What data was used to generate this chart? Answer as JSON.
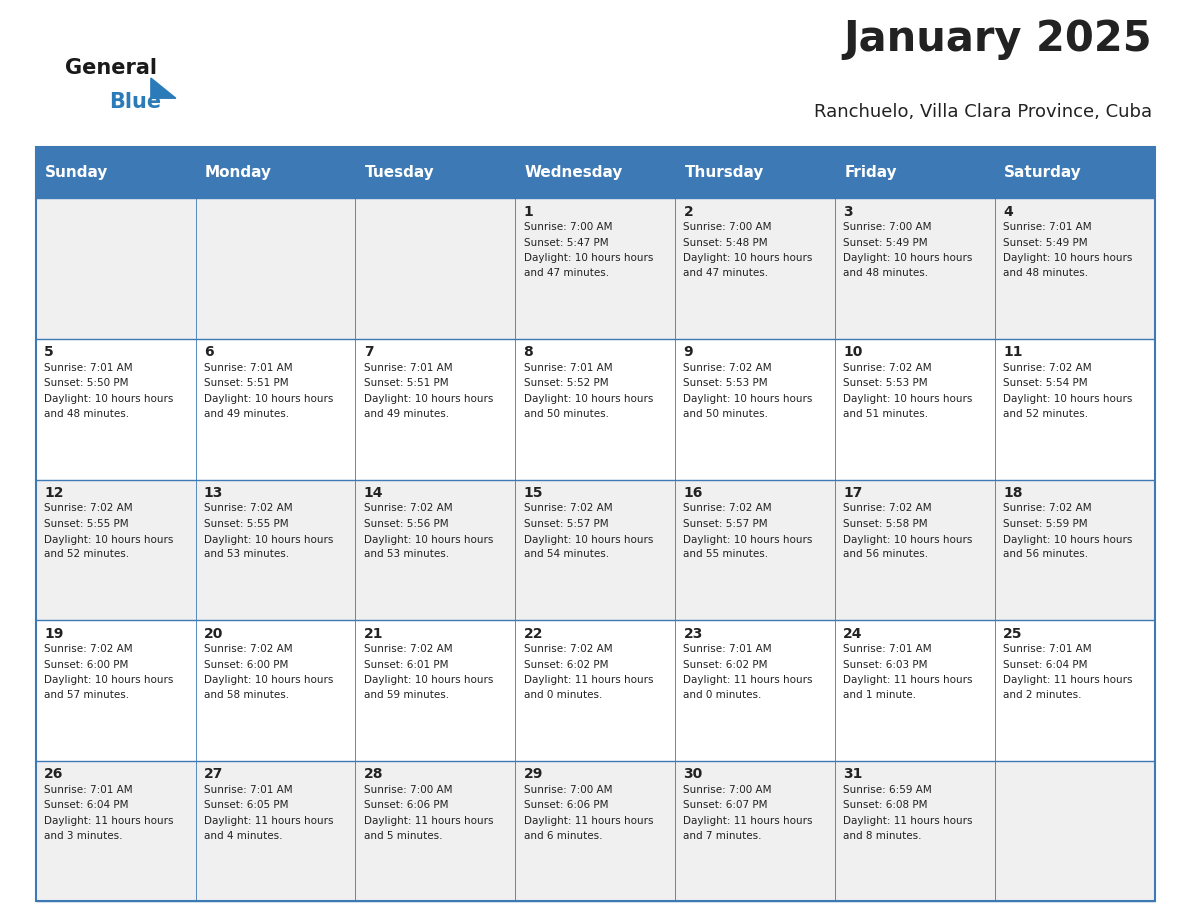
{
  "title": "January 2025",
  "subtitle": "Ranchuelo, Villa Clara Province, Cuba",
  "days_of_week": [
    "Sunday",
    "Monday",
    "Tuesday",
    "Wednesday",
    "Thursday",
    "Friday",
    "Saturday"
  ],
  "header_bg": "#3D7AB5",
  "header_text": "#FFFFFF",
  "cell_bg_light": "#F0F0F0",
  "cell_bg_white": "#FFFFFF",
  "border_color": "#3D7AB5",
  "text_color": "#222222",
  "logo_general_color": "#1A1A1A",
  "logo_blue_color": "#2B7BB9",
  "calendar_data": [
    [
      {
        "day": null,
        "sunrise": null,
        "sunset": null,
        "daylight": null
      },
      {
        "day": null,
        "sunrise": null,
        "sunset": null,
        "daylight": null
      },
      {
        "day": null,
        "sunrise": null,
        "sunset": null,
        "daylight": null
      },
      {
        "day": 1,
        "sunrise": "7:00 AM",
        "sunset": "5:47 PM",
        "daylight": "10 hours and 47 minutes."
      },
      {
        "day": 2,
        "sunrise": "7:00 AM",
        "sunset": "5:48 PM",
        "daylight": "10 hours and 47 minutes."
      },
      {
        "day": 3,
        "sunrise": "7:00 AM",
        "sunset": "5:49 PM",
        "daylight": "10 hours and 48 minutes."
      },
      {
        "day": 4,
        "sunrise": "7:01 AM",
        "sunset": "5:49 PM",
        "daylight": "10 hours and 48 minutes."
      }
    ],
    [
      {
        "day": 5,
        "sunrise": "7:01 AM",
        "sunset": "5:50 PM",
        "daylight": "10 hours and 48 minutes."
      },
      {
        "day": 6,
        "sunrise": "7:01 AM",
        "sunset": "5:51 PM",
        "daylight": "10 hours and 49 minutes."
      },
      {
        "day": 7,
        "sunrise": "7:01 AM",
        "sunset": "5:51 PM",
        "daylight": "10 hours and 49 minutes."
      },
      {
        "day": 8,
        "sunrise": "7:01 AM",
        "sunset": "5:52 PM",
        "daylight": "10 hours and 50 minutes."
      },
      {
        "day": 9,
        "sunrise": "7:02 AM",
        "sunset": "5:53 PM",
        "daylight": "10 hours and 50 minutes."
      },
      {
        "day": 10,
        "sunrise": "7:02 AM",
        "sunset": "5:53 PM",
        "daylight": "10 hours and 51 minutes."
      },
      {
        "day": 11,
        "sunrise": "7:02 AM",
        "sunset": "5:54 PM",
        "daylight": "10 hours and 52 minutes."
      }
    ],
    [
      {
        "day": 12,
        "sunrise": "7:02 AM",
        "sunset": "5:55 PM",
        "daylight": "10 hours and 52 minutes."
      },
      {
        "day": 13,
        "sunrise": "7:02 AM",
        "sunset": "5:55 PM",
        "daylight": "10 hours and 53 minutes."
      },
      {
        "day": 14,
        "sunrise": "7:02 AM",
        "sunset": "5:56 PM",
        "daylight": "10 hours and 53 minutes."
      },
      {
        "day": 15,
        "sunrise": "7:02 AM",
        "sunset": "5:57 PM",
        "daylight": "10 hours and 54 minutes."
      },
      {
        "day": 16,
        "sunrise": "7:02 AM",
        "sunset": "5:57 PM",
        "daylight": "10 hours and 55 minutes."
      },
      {
        "day": 17,
        "sunrise": "7:02 AM",
        "sunset": "5:58 PM",
        "daylight": "10 hours and 56 minutes."
      },
      {
        "day": 18,
        "sunrise": "7:02 AM",
        "sunset": "5:59 PM",
        "daylight": "10 hours and 56 minutes."
      }
    ],
    [
      {
        "day": 19,
        "sunrise": "7:02 AM",
        "sunset": "6:00 PM",
        "daylight": "10 hours and 57 minutes."
      },
      {
        "day": 20,
        "sunrise": "7:02 AM",
        "sunset": "6:00 PM",
        "daylight": "10 hours and 58 minutes."
      },
      {
        "day": 21,
        "sunrise": "7:02 AM",
        "sunset": "6:01 PM",
        "daylight": "10 hours and 59 minutes."
      },
      {
        "day": 22,
        "sunrise": "7:02 AM",
        "sunset": "6:02 PM",
        "daylight": "11 hours and 0 minutes."
      },
      {
        "day": 23,
        "sunrise": "7:01 AM",
        "sunset": "6:02 PM",
        "daylight": "11 hours and 0 minutes."
      },
      {
        "day": 24,
        "sunrise": "7:01 AM",
        "sunset": "6:03 PM",
        "daylight": "11 hours and 1 minute."
      },
      {
        "day": 25,
        "sunrise": "7:01 AM",
        "sunset": "6:04 PM",
        "daylight": "11 hours and 2 minutes."
      }
    ],
    [
      {
        "day": 26,
        "sunrise": "7:01 AM",
        "sunset": "6:04 PM",
        "daylight": "11 hours and 3 minutes."
      },
      {
        "day": 27,
        "sunrise": "7:01 AM",
        "sunset": "6:05 PM",
        "daylight": "11 hours and 4 minutes."
      },
      {
        "day": 28,
        "sunrise": "7:00 AM",
        "sunset": "6:06 PM",
        "daylight": "11 hours and 5 minutes."
      },
      {
        "day": 29,
        "sunrise": "7:00 AM",
        "sunset": "6:06 PM",
        "daylight": "11 hours and 6 minutes."
      },
      {
        "day": 30,
        "sunrise": "7:00 AM",
        "sunset": "6:07 PM",
        "daylight": "11 hours and 7 minutes."
      },
      {
        "day": 31,
        "sunrise": "6:59 AM",
        "sunset": "6:08 PM",
        "daylight": "11 hours and 8 minutes."
      },
      {
        "day": null,
        "sunrise": null,
        "sunset": null,
        "daylight": null
      }
    ]
  ]
}
